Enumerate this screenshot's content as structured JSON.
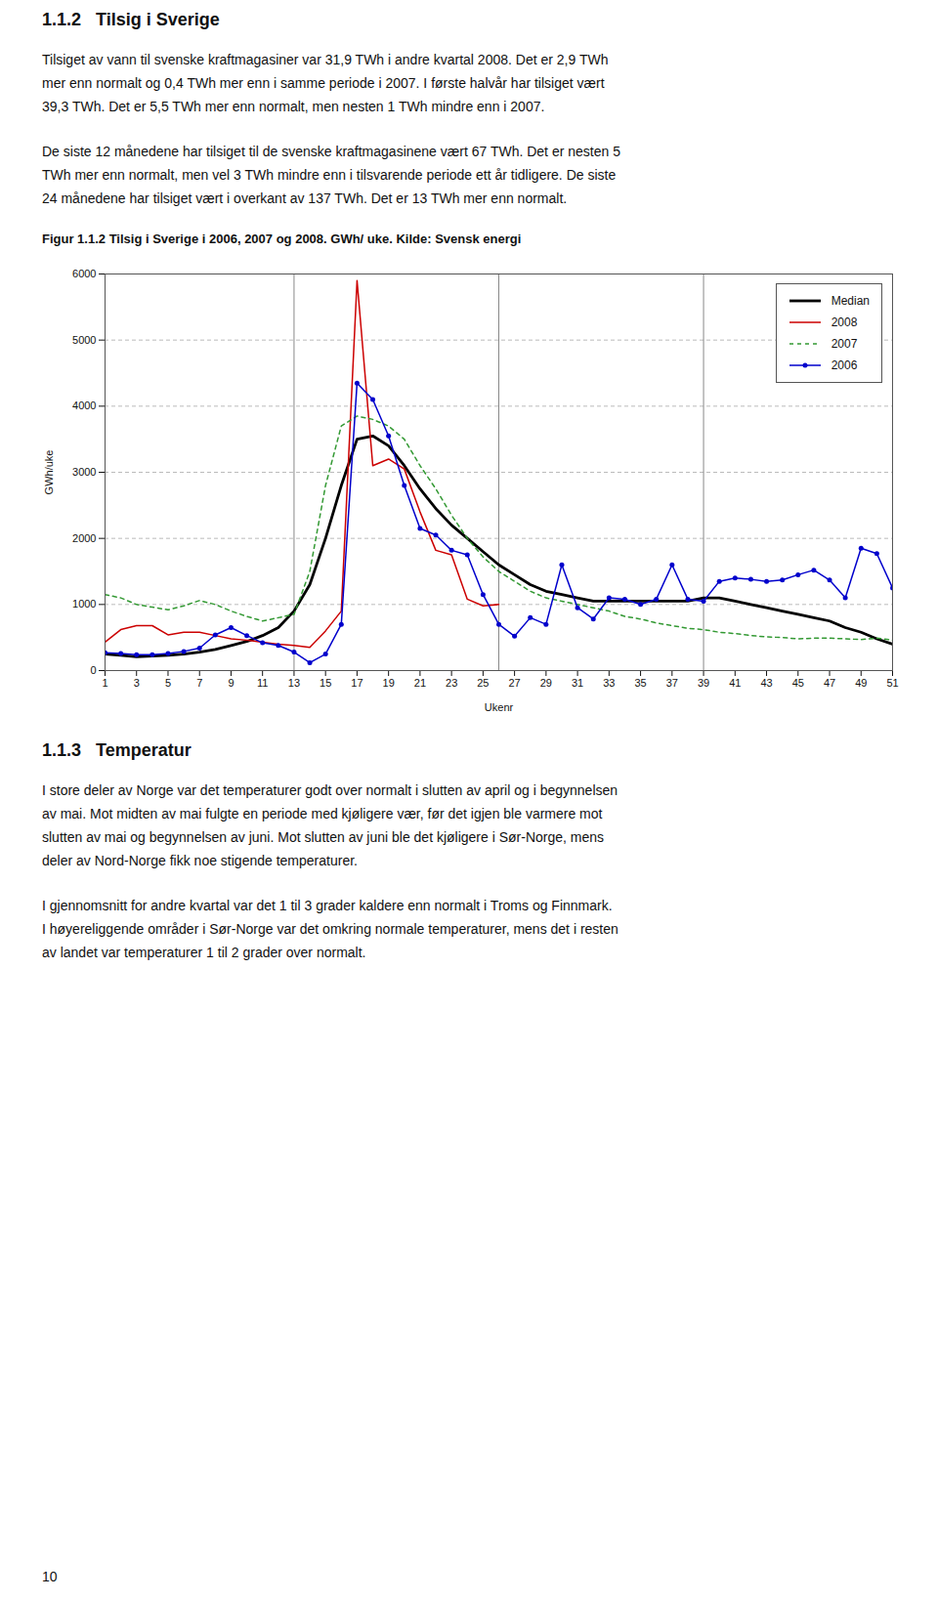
{
  "heading_above": "1.1.2   Tilsig i Sverige",
  "paragraphs_above": [
    [
      "Tilsiget av vann til svenske kraftmagasiner var 31,9 TWh i andre kvartal 2008. Det er 2,9 TWh",
      "mer enn normalt og 0,4 TWh mer enn i samme periode i 2007. I første halvår har tilsiget vært",
      "39,3 TWh. Det er 5,5 TWh mer enn normalt, men nesten 1 TWh mindre enn i 2007."
    ],
    [
      "De siste 12 månedene har tilsiget til de svenske kraftmagasinene vært 67 TWh. Det er nesten 5",
      "TWh mer enn normalt, men vel 3 TWh mindre enn i tilsvarende periode ett år tidligere. De siste",
      "24 månedene har tilsiget vært i overkant av 137 TWh. Det er 13 TWh mer enn normalt."
    ]
  ],
  "heading_below": "1.1.3   Temperatur",
  "paragraphs_below": [
    [
      "I store deler av Norge var det temperaturer godt over normalt i slutten av april og i begynnelsen",
      "av mai. Mot midten av mai fulgte en periode med kjøligere vær, før det igjen ble varmere mot",
      "slutten av mai og begynnelsen av juni. Mot slutten av juni ble det kjøligere i Sør-Norge, mens",
      "deler av Nord-Norge fikk noe stigende temperaturer."
    ],
    [
      "I gjennomsnitt for andre kvartal var det 1 til 3 grader kaldere enn normalt i Troms og Finnmark.",
      "I høyereliggende områder i Sør-Norge var det omkring normale temperaturer, mens det i resten",
      "av landet var temperaturer 1 til 2 grader over normalt."
    ]
  ],
  "page_number": "10",
  "chart_data": {
    "type": "line",
    "title": "Figur 1.1.2 Tilsig i Sverige i 2006, 2007 og 2008. GWh/ uke. Kilde: Svensk energi",
    "xlabel": "Ukenr",
    "ylabel": "GWh/uke",
    "x": [
      1,
      2,
      3,
      4,
      5,
      6,
      7,
      8,
      9,
      10,
      11,
      12,
      13,
      14,
      15,
      16,
      17,
      18,
      19,
      20,
      21,
      22,
      23,
      24,
      25,
      26,
      27,
      28,
      29,
      30,
      31,
      32,
      33,
      34,
      35,
      36,
      37,
      38,
      39,
      40,
      41,
      42,
      43,
      44,
      45,
      46,
      47,
      48,
      49,
      50,
      51
    ],
    "xlim": [
      1,
      51
    ],
    "xticks": [
      1,
      3,
      5,
      7,
      9,
      11,
      13,
      15,
      17,
      19,
      21,
      23,
      25,
      27,
      29,
      31,
      33,
      35,
      37,
      39,
      41,
      43,
      45,
      47,
      49,
      51
    ],
    "ylim": [
      0,
      6000
    ],
    "yticks": [
      0,
      1000,
      2000,
      3000,
      4000,
      5000,
      6000
    ],
    "grid": true,
    "legend": "upper right",
    "vlines": [
      13,
      26,
      39
    ],
    "series": [
      {
        "name": "Median",
        "color": "#000000",
        "line_style": "solid",
        "marker": "none",
        "values": [
          250,
          230,
          210,
          220,
          230,
          250,
          280,
          320,
          380,
          440,
          530,
          650,
          900,
          1300,
          2000,
          2800,
          3500,
          3550,
          3400,
          3100,
          2750,
          2450,
          2200,
          2000,
          1800,
          1600,
          1450,
          1300,
          1200,
          1150,
          1100,
          1050,
          1050,
          1050,
          1050,
          1050,
          1050,
          1050,
          1100,
          1100,
          1050,
          1000,
          950,
          900,
          850,
          800,
          750,
          650,
          580,
          480,
          400
        ]
      },
      {
        "name": "2008",
        "color": "#cc0000",
        "line_style": "solid",
        "marker": "none",
        "values": [
          430,
          620,
          680,
          680,
          540,
          580,
          580,
          530,
          480,
          460,
          430,
          400,
          380,
          350,
          600,
          900,
          5900,
          3100,
          3200,
          3050,
          2400,
          1820,
          1750,
          1080,
          980,
          1000,
          null,
          null,
          null,
          null,
          null,
          null,
          null,
          null,
          null,
          null,
          null,
          null,
          null,
          null,
          null,
          null,
          null,
          null,
          null,
          null,
          null,
          null,
          null,
          null,
          null
        ]
      },
      {
        "name": "2007",
        "color": "#339933",
        "line_style": "dashed",
        "marker": "none",
        "values": [
          1150,
          1100,
          1000,
          960,
          920,
          980,
          1060,
          1000,
          900,
          820,
          750,
          800,
          850,
          1500,
          2800,
          3700,
          3850,
          3800,
          3700,
          3500,
          3100,
          2750,
          2350,
          2000,
          1720,
          1500,
          1350,
          1200,
          1100,
          1050,
          1000,
          950,
          900,
          820,
          780,
          720,
          680,
          640,
          620,
          580,
          560,
          530,
          510,
          500,
          480,
          490,
          490,
          480,
          470,
          490,
          460
        ]
      },
      {
        "name": "2006",
        "color": "#0000cc",
        "line_style": "solid",
        "marker": "circle",
        "values": [
          270,
          260,
          240,
          240,
          260,
          290,
          340,
          540,
          650,
          530,
          420,
          380,
          280,
          120,
          250,
          700,
          4350,
          4100,
          3550,
          2800,
          2150,
          2050,
          1820,
          1750,
          1150,
          700,
          520,
          800,
          700,
          1600,
          950,
          780,
          1100,
          1080,
          1000,
          1080,
          1600,
          1080,
          1050,
          1350,
          1400,
          1380,
          1350,
          1370,
          1450,
          1520,
          1370,
          1100,
          1850,
          1770,
          1250
        ]
      }
    ]
  }
}
